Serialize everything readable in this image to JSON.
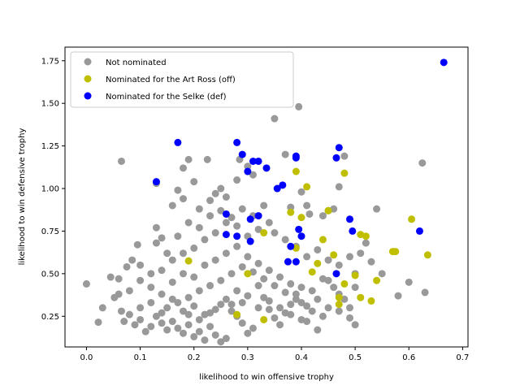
{
  "chart_data": {
    "type": "scatter",
    "title": "",
    "xlabel": "likelihood to win offensive trophy",
    "ylabel": "likelihood to win defensive trophy",
    "xlim": [
      -0.04,
      0.71
    ],
    "ylim": [
      0.07,
      1.83
    ],
    "xticks": [
      {
        "value": 0.0,
        "label": "0.0"
      },
      {
        "value": 0.1,
        "label": "0.1"
      },
      {
        "value": 0.2,
        "label": "0.2"
      },
      {
        "value": 0.3,
        "label": "0.3"
      },
      {
        "value": 0.4,
        "label": "0.4"
      },
      {
        "value": 0.5,
        "label": "0.5"
      },
      {
        "value": 0.6,
        "label": "0.6"
      },
      {
        "value": 0.7,
        "label": "0.7"
      }
    ],
    "yticks": [
      {
        "value": 0.25,
        "label": "0.25"
      },
      {
        "value": 0.5,
        "label": "0.50"
      },
      {
        "value": 0.75,
        "label": "0.75"
      },
      {
        "value": 1.0,
        "label": "1.00"
      },
      {
        "value": 1.25,
        "label": "1.25"
      },
      {
        "value": 1.5,
        "label": "1.50"
      },
      {
        "value": 1.75,
        "label": "1.75"
      }
    ],
    "grid": false,
    "legend_position": "upper-left",
    "series": [
      {
        "name": "Not nominated",
        "color": "#999999",
        "points": [
          [
            0.0,
            0.44
          ],
          [
            0.022,
            0.215
          ],
          [
            0.03,
            0.3
          ],
          [
            0.045,
            0.48
          ],
          [
            0.052,
            0.36
          ],
          [
            0.06,
            0.47
          ],
          [
            0.065,
            1.16
          ],
          [
            0.075,
            0.54
          ],
          [
            0.085,
            0.58
          ],
          [
            0.095,
            0.67
          ],
          [
            0.1,
            0.55
          ],
          [
            0.13,
            0.68
          ],
          [
            0.13,
            1.03
          ],
          [
            0.14,
            0.71
          ],
          [
            0.16,
            0.9
          ],
          [
            0.17,
            0.99
          ],
          [
            0.18,
            1.12
          ],
          [
            0.18,
            0.94
          ],
          [
            0.19,
            1.17
          ],
          [
            0.2,
            1.04
          ],
          [
            0.21,
            0.88
          ],
          [
            0.225,
            1.17
          ],
          [
            0.23,
            0.93
          ],
          [
            0.24,
            0.97
          ],
          [
            0.25,
            1.0
          ],
          [
            0.26,
            0.95
          ],
          [
            0.28,
            1.05
          ],
          [
            0.285,
            1.17
          ],
          [
            0.3,
            1.13
          ],
          [
            0.31,
            1.08
          ],
          [
            0.35,
            1.41
          ],
          [
            0.37,
            1.2
          ],
          [
            0.38,
            0.89
          ],
          [
            0.395,
            1.48
          ],
          [
            0.4,
            0.98
          ],
          [
            0.41,
            0.9
          ],
          [
            0.415,
            0.85
          ],
          [
            0.44,
            0.84
          ],
          [
            0.45,
            0.87
          ],
          [
            0.46,
            0.88
          ],
          [
            0.47,
            1.01
          ],
          [
            0.48,
            1.19
          ],
          [
            0.5,
            0.5
          ],
          [
            0.52,
            0.68
          ],
          [
            0.54,
            0.88
          ],
          [
            0.58,
            0.37
          ],
          [
            0.6,
            0.45
          ],
          [
            0.625,
            1.15
          ],
          [
            0.63,
            0.39
          ],
          [
            0.55,
            0.5
          ],
          [
            0.5,
            0.42
          ],
          [
            0.5,
            0.2
          ],
          [
            0.49,
            0.3
          ],
          [
            0.48,
            0.35
          ],
          [
            0.47,
            0.38
          ],
          [
            0.46,
            0.42
          ],
          [
            0.45,
            0.46
          ],
          [
            0.44,
            0.25
          ],
          [
            0.43,
            0.17
          ],
          [
            0.42,
            0.28
          ],
          [
            0.41,
            0.22
          ],
          [
            0.4,
            0.33
          ],
          [
            0.39,
            0.38
          ],
          [
            0.38,
            0.32
          ],
          [
            0.37,
            0.27
          ],
          [
            0.36,
            0.2
          ],
          [
            0.35,
            0.24
          ],
          [
            0.34,
            0.29
          ],
          [
            0.33,
            0.36
          ],
          [
            0.32,
            0.43
          ],
          [
            0.31,
            0.18
          ],
          [
            0.3,
            0.15
          ],
          [
            0.29,
            0.21
          ],
          [
            0.28,
            0.25
          ],
          [
            0.27,
            0.32
          ],
          [
            0.26,
            0.12
          ],
          [
            0.25,
            0.1
          ],
          [
            0.24,
            0.14
          ],
          [
            0.23,
            0.19
          ],
          [
            0.22,
            0.11
          ],
          [
            0.21,
            0.16
          ],
          [
            0.2,
            0.13
          ],
          [
            0.19,
            0.2
          ],
          [
            0.18,
            0.15
          ],
          [
            0.17,
            0.18
          ],
          [
            0.16,
            0.22
          ],
          [
            0.15,
            0.17
          ],
          [
            0.14,
            0.21
          ],
          [
            0.13,
            0.25
          ],
          [
            0.12,
            0.19
          ],
          [
            0.11,
            0.16
          ],
          [
            0.1,
            0.23
          ],
          [
            0.09,
            0.2
          ],
          [
            0.08,
            0.26
          ],
          [
            0.07,
            0.22
          ],
          [
            0.065,
            0.28
          ],
          [
            0.12,
            0.42
          ],
          [
            0.14,
            0.38
          ],
          [
            0.16,
            0.45
          ],
          [
            0.18,
            0.5
          ],
          [
            0.2,
            0.48
          ],
          [
            0.22,
            0.55
          ],
          [
            0.24,
            0.58
          ],
          [
            0.26,
            0.62
          ],
          [
            0.28,
            0.66
          ],
          [
            0.3,
            0.6
          ],
          [
            0.32,
            0.56
          ],
          [
            0.34,
            0.52
          ],
          [
            0.36,
            0.48
          ],
          [
            0.38,
            0.44
          ],
          [
            0.4,
            0.42
          ],
          [
            0.42,
            0.4
          ],
          [
            0.44,
            0.47
          ],
          [
            0.3,
            0.72
          ],
          [
            0.32,
            0.76
          ],
          [
            0.34,
            0.8
          ],
          [
            0.28,
            0.78
          ],
          [
            0.26,
            0.8
          ],
          [
            0.24,
            0.74
          ],
          [
            0.22,
            0.7
          ],
          [
            0.2,
            0.65
          ],
          [
            0.18,
            0.62
          ],
          [
            0.16,
            0.58
          ],
          [
            0.14,
            0.52
          ],
          [
            0.12,
            0.5
          ],
          [
            0.1,
            0.46
          ],
          [
            0.08,
            0.4
          ],
          [
            0.06,
            0.38
          ],
          [
            0.15,
            0.3
          ],
          [
            0.17,
            0.33
          ],
          [
            0.19,
            0.36
          ],
          [
            0.21,
            0.4
          ],
          [
            0.23,
            0.43
          ],
          [
            0.25,
            0.46
          ],
          [
            0.27,
            0.5
          ],
          [
            0.29,
            0.54
          ],
          [
            0.31,
            0.51
          ],
          [
            0.33,
            0.47
          ],
          [
            0.35,
            0.43
          ],
          [
            0.37,
            0.39
          ],
          [
            0.39,
            0.35
          ],
          [
            0.41,
            0.31
          ],
          [
            0.43,
            0.35
          ],
          [
            0.45,
            0.3
          ],
          [
            0.47,
            0.28
          ],
          [
            0.49,
            0.24
          ],
          [
            0.1,
            0.3
          ],
          [
            0.12,
            0.33
          ],
          [
            0.14,
            0.27
          ],
          [
            0.16,
            0.35
          ],
          [
            0.18,
            0.28
          ],
          [
            0.2,
            0.31
          ],
          [
            0.22,
            0.26
          ],
          [
            0.24,
            0.29
          ],
          [
            0.26,
            0.35
          ],
          [
            0.28,
            0.4
          ],
          [
            0.3,
            0.37
          ],
          [
            0.32,
            0.3
          ],
          [
            0.34,
            0.34
          ],
          [
            0.36,
            0.3
          ],
          [
            0.38,
            0.26
          ],
          [
            0.4,
            0.23
          ],
          [
            0.19,
            0.26
          ],
          [
            0.21,
            0.23
          ],
          [
            0.23,
            0.27
          ],
          [
            0.25,
            0.32
          ],
          [
            0.27,
            0.28
          ],
          [
            0.29,
            0.33
          ],
          [
            0.15,
            0.62
          ],
          [
            0.13,
            0.77
          ],
          [
            0.17,
            0.72
          ],
          [
            0.19,
            0.8
          ],
          [
            0.21,
            0.77
          ],
          [
            0.23,
            0.84
          ],
          [
            0.25,
            0.87
          ],
          [
            0.27,
            0.83
          ],
          [
            0.29,
            0.88
          ],
          [
            0.31,
            0.84
          ],
          [
            0.33,
            0.9
          ],
          [
            0.35,
            0.74
          ],
          [
            0.37,
            0.7
          ],
          [
            0.39,
            0.66
          ],
          [
            0.41,
            0.6
          ],
          [
            0.43,
            0.64
          ],
          [
            0.45,
            0.58
          ],
          [
            0.47,
            0.55
          ],
          [
            0.49,
            0.6
          ],
          [
            0.51,
            0.62
          ],
          [
            0.53,
            0.57
          ]
        ]
      },
      {
        "name": "Nominated for the Art Ross (off)",
        "color": "#bfbf00",
        "points": [
          [
            0.19,
            0.575
          ],
          [
            0.28,
            0.26
          ],
          [
            0.3,
            0.5
          ],
          [
            0.33,
            0.23
          ],
          [
            0.33,
            0.74
          ],
          [
            0.38,
            0.86
          ],
          [
            0.39,
            0.65
          ],
          [
            0.39,
            1.1
          ],
          [
            0.4,
            0.83
          ],
          [
            0.41,
            1.01
          ],
          [
            0.42,
            0.51
          ],
          [
            0.43,
            0.56
          ],
          [
            0.44,
            0.7
          ],
          [
            0.45,
            0.87
          ],
          [
            0.46,
            0.61
          ],
          [
            0.47,
            0.36
          ],
          [
            0.47,
            0.32
          ],
          [
            0.48,
            0.44
          ],
          [
            0.48,
            1.09
          ],
          [
            0.5,
            0.49
          ],
          [
            0.51,
            0.73
          ],
          [
            0.51,
            0.36
          ],
          [
            0.52,
            0.72
          ],
          [
            0.53,
            0.34
          ],
          [
            0.54,
            0.46
          ],
          [
            0.57,
            0.63
          ],
          [
            0.575,
            0.63
          ],
          [
            0.605,
            0.82
          ],
          [
            0.635,
            0.61
          ]
        ]
      },
      {
        "name": "Nominated for the Selke (def)",
        "color": "#0000ff",
        "points": [
          [
            0.13,
            1.04
          ],
          [
            0.17,
            1.27
          ],
          [
            0.26,
            0.85
          ],
          [
            0.26,
            0.73
          ],
          [
            0.28,
            1.27
          ],
          [
            0.28,
            0.72
          ],
          [
            0.29,
            1.2
          ],
          [
            0.3,
            1.1
          ],
          [
            0.31,
            1.16
          ],
          [
            0.305,
            0.82
          ],
          [
            0.305,
            0.69
          ],
          [
            0.32,
            1.16
          ],
          [
            0.32,
            0.84
          ],
          [
            0.335,
            1.12
          ],
          [
            0.355,
            1.0
          ],
          [
            0.365,
            1.02
          ],
          [
            0.375,
            0.57
          ],
          [
            0.38,
            0.66
          ],
          [
            0.39,
            1.19
          ],
          [
            0.39,
            1.18
          ],
          [
            0.39,
            0.57
          ],
          [
            0.395,
            0.76
          ],
          [
            0.4,
            0.72
          ],
          [
            0.465,
            1.18
          ],
          [
            0.47,
            1.24
          ],
          [
            0.465,
            0.5
          ],
          [
            0.49,
            0.82
          ],
          [
            0.495,
            0.75
          ],
          [
            0.62,
            0.75
          ],
          [
            0.665,
            1.74
          ]
        ]
      }
    ]
  }
}
